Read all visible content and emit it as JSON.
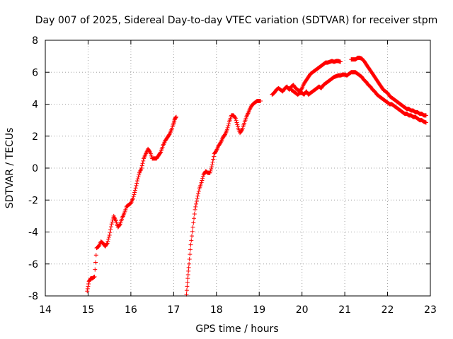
{
  "chart_data": {
    "type": "scatter",
    "title": "Day 007 of 2025, Sidereal Day-to-day VTEC variation (SDTVAR) for receiver stpm",
    "xlabel": "GPS time / hours",
    "ylabel": "SDTVAR / TECUs",
    "xlim": [
      14,
      23
    ],
    "ylim": [
      -8,
      8
    ],
    "xticks": [
      "14",
      "15",
      "16",
      "17",
      "18",
      "19",
      "20",
      "21",
      "22",
      "23"
    ],
    "yticks": [
      "-8",
      "-6",
      "-4",
      "-2",
      "0",
      "2",
      "4",
      "6",
      "8"
    ],
    "grid": true,
    "marker": "+",
    "color": "#ff0000",
    "series": [
      {
        "x": [
          14.98,
          15.02,
          15.06,
          15.1,
          15.15,
          15.2,
          15.25,
          15.3,
          15.35,
          15.4,
          15.45,
          15.5,
          15.55,
          15.6,
          15.65,
          15.7,
          15.75,
          15.8,
          15.85,
          15.9,
          15.95,
          16.0,
          16.05,
          16.1,
          16.15,
          16.2,
          16.25,
          16.3,
          16.35,
          16.4,
          16.45,
          16.5,
          16.55,
          16.6,
          16.65,
          16.7,
          16.75,
          16.8,
          16.85,
          16.9,
          16.95,
          17.0,
          17.03,
          17.06
        ],
        "y": [
          -7.7,
          -7.1,
          -6.9,
          -6.9,
          -6.8,
          -5.0,
          -4.9,
          -4.6,
          -4.7,
          -4.9,
          -4.7,
          -4.2,
          -3.5,
          -3.0,
          -3.3,
          -3.7,
          -3.5,
          -3.1,
          -2.8,
          -2.4,
          -2.3,
          -2.2,
          -1.9,
          -1.4,
          -0.8,
          -0.3,
          0.0,
          0.6,
          0.9,
          1.2,
          1.0,
          0.6,
          0.6,
          0.6,
          0.8,
          1.0,
          1.4,
          1.7,
          1.9,
          2.1,
          2.4,
          2.8,
          3.1,
          3.2
        ]
      },
      {
        "x": [
          17.3,
          17.33,
          17.36,
          17.4,
          17.45,
          17.5,
          17.55,
          17.6,
          17.65,
          17.7,
          17.75,
          17.8,
          17.85,
          17.9,
          17.95,
          18.0,
          18.05,
          18.1,
          18.15,
          18.2,
          18.25,
          18.3,
          18.35,
          18.4,
          18.45,
          18.5,
          18.55,
          18.6,
          18.65,
          18.7,
          18.75,
          18.8,
          18.85,
          18.9,
          18.95,
          19.0,
          19.03
        ],
        "y": [
          -7.9,
          -6.9,
          -6.0,
          -4.8,
          -3.7,
          -2.6,
          -1.9,
          -1.3,
          -0.9,
          -0.4,
          -0.2,
          -0.3,
          -0.3,
          0.2,
          0.9,
          1.1,
          1.4,
          1.6,
          1.9,
          2.1,
          2.4,
          2.9,
          3.3,
          3.3,
          3.1,
          2.6,
          2.2,
          2.4,
          2.8,
          3.2,
          3.5,
          3.8,
          4.0,
          4.1,
          4.2,
          4.2,
          4.2
        ]
      },
      {
        "x": [
          19.3,
          19.35,
          19.4,
          19.45,
          19.5,
          19.55,
          19.6,
          19.65,
          19.7,
          19.75,
          19.8,
          19.85,
          19.9,
          19.95,
          20.0,
          20.05,
          20.1,
          20.15,
          20.2,
          20.25,
          20.3,
          20.35,
          20.4,
          20.45,
          20.5,
          20.55,
          20.6,
          20.65,
          20.7,
          20.75,
          20.8,
          20.85,
          20.9
        ],
        "y": [
          4.6,
          4.7,
          4.9,
          5.0,
          4.9,
          4.8,
          5.0,
          5.1,
          4.9,
          5.1,
          5.2,
          5.0,
          4.9,
          4.8,
          5.0,
          5.3,
          5.5,
          5.7,
          5.9,
          6.0,
          6.1,
          6.2,
          6.3,
          6.4,
          6.5,
          6.6,
          6.6,
          6.65,
          6.7,
          6.65,
          6.7,
          6.7,
          6.65
        ]
      },
      {
        "x": [
          19.75,
          19.8,
          19.85,
          19.9,
          19.95,
          20.0,
          20.05,
          20.1,
          20.15,
          20.2,
          20.25,
          20.3,
          20.35,
          20.4,
          20.45,
          20.5,
          20.55,
          20.6,
          20.65,
          20.7,
          20.75,
          20.8,
          20.85,
          20.9,
          20.95,
          21.0,
          21.05,
          21.1,
          21.15,
          21.2,
          21.25,
          21.3,
          21.35,
          21.4,
          21.45,
          21.5,
          21.55,
          21.6,
          21.65,
          21.7,
          21.75,
          21.8,
          21.85,
          21.9,
          21.95,
          22.0,
          22.05,
          22.1,
          22.15,
          22.2,
          22.25,
          22.3,
          22.35,
          22.4,
          22.45,
          22.5,
          22.55,
          22.6,
          22.65,
          22.7,
          22.75,
          22.8,
          22.85,
          22.9
        ],
        "y": [
          4.9,
          4.8,
          4.7,
          4.6,
          4.7,
          4.7,
          4.6,
          4.8,
          4.6,
          4.7,
          4.8,
          4.9,
          5.0,
          5.1,
          5.0,
          5.2,
          5.3,
          5.4,
          5.5,
          5.6,
          5.7,
          5.75,
          5.8,
          5.8,
          5.85,
          5.85,
          5.8,
          5.9,
          6.0,
          6.0,
          6.0,
          5.9,
          5.8,
          5.7,
          5.5,
          5.4,
          5.2,
          5.1,
          4.9,
          4.8,
          4.6,
          4.5,
          4.4,
          4.3,
          4.2,
          4.1,
          4.0,
          4.0,
          3.9,
          3.8,
          3.7,
          3.6,
          3.5,
          3.4,
          3.4,
          3.3,
          3.3,
          3.2,
          3.2,
          3.1,
          3.0,
          3.0,
          2.9,
          2.85
        ]
      },
      {
        "x": [
          21.15,
          21.2,
          21.25,
          21.3,
          21.35,
          21.4,
          21.45,
          21.5,
          21.55,
          21.6,
          21.65,
          21.7,
          21.75,
          21.8,
          21.85,
          21.9,
          21.95,
          22.0,
          22.05,
          22.1,
          22.15,
          22.2,
          22.25,
          22.3,
          22.35,
          22.4,
          22.45,
          22.5,
          22.55,
          22.6,
          22.65,
          22.7,
          22.75,
          22.8,
          22.85,
          22.9
        ],
        "y": [
          6.8,
          6.8,
          6.8,
          6.9,
          6.9,
          6.85,
          6.7,
          6.5,
          6.3,
          6.1,
          5.9,
          5.7,
          5.5,
          5.3,
          5.1,
          4.9,
          4.8,
          4.7,
          4.5,
          4.4,
          4.3,
          4.2,
          4.1,
          4.0,
          3.9,
          3.8,
          3.7,
          3.7,
          3.6,
          3.6,
          3.5,
          3.5,
          3.4,
          3.4,
          3.3,
          3.3
        ]
      }
    ]
  }
}
